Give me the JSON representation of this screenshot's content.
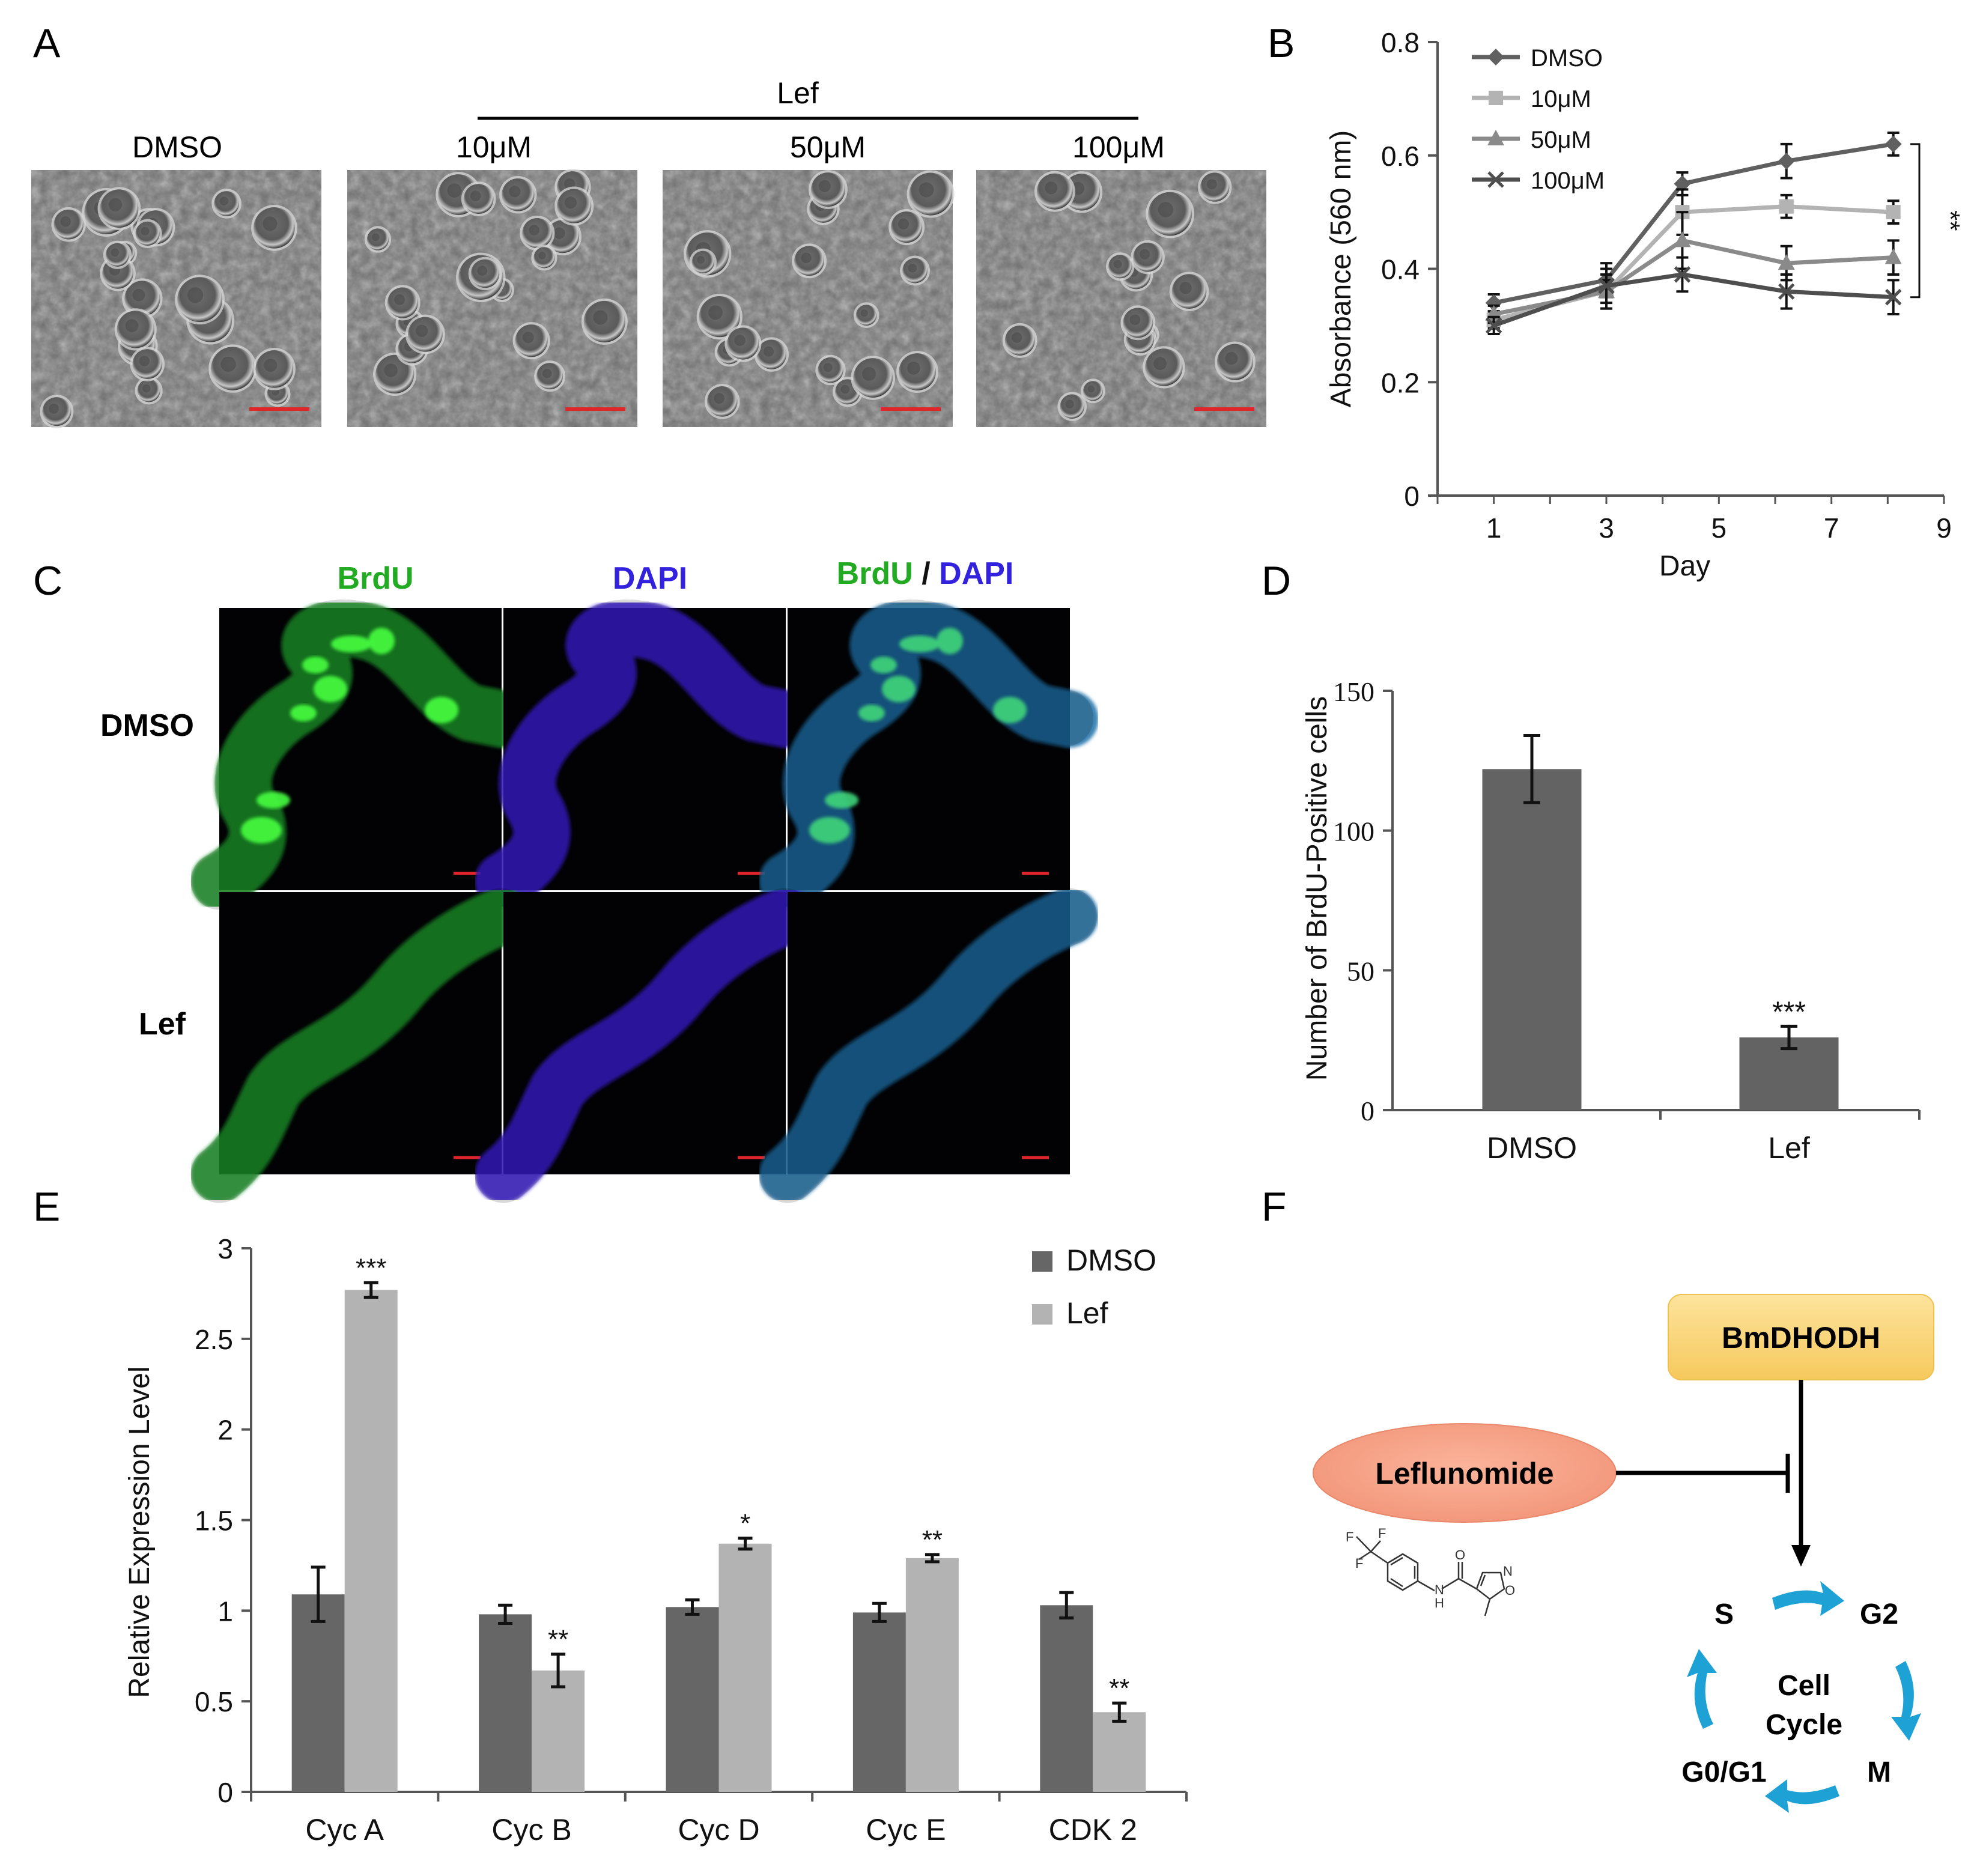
{
  "panel_labels": {
    "a": "A",
    "b": "B",
    "c": "C",
    "d": "D",
    "e": "E",
    "f": "F"
  },
  "panelA": {
    "lef_label": "Lef",
    "conditions": [
      "DMSO",
      "10μM",
      "50μM",
      "100μM"
    ]
  },
  "panelC": {
    "col_brdu": "BrdU",
    "col_dapi": "DAPI",
    "col_merge_a": "BrdU",
    "col_merge_sep": " / ",
    "col_merge_b": "DAPI",
    "rows": [
      "DMSO",
      "Lef"
    ],
    "colors": {
      "brdu": "#22aa22",
      "dapi": "#3322dd"
    }
  },
  "panelF": {
    "enzyme": "BmDHODH",
    "drug": "Leflunomide",
    "phases": {
      "s": "S",
      "g2": "G2",
      "m": "M",
      "g0g1": "G0/G1"
    },
    "cycle_line1": "Cell",
    "cycle_line2": "Cycle",
    "structure_labels": {
      "f1": "F",
      "f2": "F",
      "f3": "F",
      "o1": "O",
      "n1": "N",
      "h1": "H",
      "n2": "N",
      "o2": "O"
    },
    "colors": {
      "enzyme_box": "#fbd67f",
      "drug_ellipse": "#f7a58a",
      "arrows": "#1ea2d6"
    }
  },
  "chart_data": [
    {
      "panel": "B",
      "type": "line",
      "xlabel": "Day",
      "ylabel": "Absorbance (560 nm)",
      "xlim": [
        0,
        9
      ],
      "ylim": [
        0,
        0.8
      ],
      "xticks": [
        "1",
        "3",
        "5",
        "7",
        "9"
      ],
      "yticks": [
        "0",
        "0.2",
        "0.4",
        "0.6",
        "0.8"
      ],
      "x": [
        1,
        3,
        5,
        7,
        9
      ],
      "series": [
        {
          "name": "DMSO",
          "values": [
            0.34,
            0.38,
            0.55,
            0.59,
            0.62
          ],
          "errors": [
            0.015,
            0.02,
            0.02,
            0.03,
            0.02
          ],
          "color": "#606060",
          "marker": "diamond"
        },
        {
          "name": "10μM",
          "values": [
            0.31,
            0.36,
            0.5,
            0.51,
            0.5
          ],
          "errors": [
            0.015,
            0.02,
            0.04,
            0.02,
            0.02
          ],
          "color": "#b3b3b3",
          "marker": "square"
        },
        {
          "name": "50μM",
          "values": [
            0.32,
            0.36,
            0.45,
            0.41,
            0.42
          ],
          "errors": [
            0.015,
            0.03,
            0.05,
            0.03,
            0.03
          ],
          "color": "#8a8a8a",
          "marker": "triangle"
        },
        {
          "name": "100μM",
          "values": [
            0.3,
            0.37,
            0.39,
            0.36,
            0.35
          ],
          "errors": [
            0.015,
            0.04,
            0.03,
            0.03,
            0.03
          ],
          "color": "#4e4e4e",
          "marker": "x"
        }
      ],
      "annotation": "**",
      "legend_position": "top-left"
    },
    {
      "panel": "D",
      "type": "bar",
      "ylabel": "Number of BrdU-Positive cells",
      "ylim": [
        0,
        150
      ],
      "yticks": [
        "0",
        "50",
        "100",
        "150"
      ],
      "categories": [
        "DMSO",
        "Lef"
      ],
      "values": [
        122,
        26
      ],
      "errors": [
        12,
        4
      ],
      "annotations": [
        "",
        "***"
      ],
      "color": "#636363"
    },
    {
      "panel": "E",
      "type": "bar",
      "ylabel": "Relative Expression Level",
      "ylim": [
        0,
        3
      ],
      "yticks": [
        "0",
        "0.5",
        "1",
        "1.5",
        "2",
        "2.5",
        "3"
      ],
      "categories": [
        "Cyc A",
        "Cyc B",
        "Cyc D",
        "Cyc E",
        "CDK 2"
      ],
      "series": [
        {
          "name": "DMSO",
          "values": [
            1.09,
            0.98,
            1.02,
            0.99,
            1.03
          ],
          "errors": [
            0.15,
            0.05,
            0.04,
            0.05,
            0.07
          ],
          "color": "#666666"
        },
        {
          "name": "Lef",
          "values": [
            2.77,
            0.67,
            1.37,
            1.29,
            0.44
          ],
          "errors": [
            0.04,
            0.09,
            0.03,
            0.02,
            0.05
          ],
          "color": "#b3b3b3"
        }
      ],
      "annotations": [
        "***",
        "**",
        "*",
        "**",
        "**"
      ],
      "legend_position": "top-right"
    }
  ]
}
